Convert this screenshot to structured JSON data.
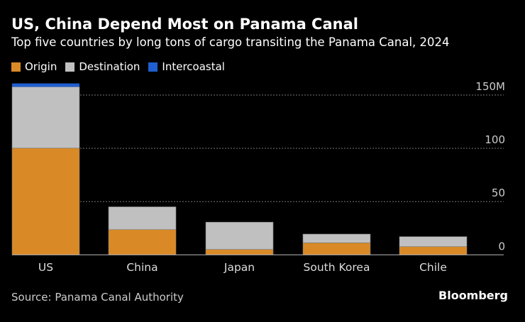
{
  "title": "US, China Depend Most on Panama Canal",
  "subtitle": "Top five countries by long tons of cargo transiting the Panama Canal, 2024",
  "source": "Source: Panama Canal Authority",
  "logo": "Bloomberg",
  "chart_data": {
    "type": "bar",
    "stacked": true,
    "categories": [
      "US",
      "China",
      "Japan",
      "South Korea",
      "Chile"
    ],
    "series": [
      {
        "name": "Origin",
        "color": "#d98a26",
        "values": [
          100.2,
          23.7,
          5.1,
          11.3,
          7.7
        ]
      },
      {
        "name": "Destination",
        "color": "#c0c0c0",
        "values": [
          57.5,
          21.4,
          25.6,
          8.2,
          9.4
        ]
      },
      {
        "name": "Intercoastal",
        "color": "#1f5fcf",
        "values": [
          3.2,
          0,
          0,
          0,
          0
        ]
      }
    ],
    "ylim": [
      0,
      150
    ],
    "yticks": [
      0,
      50,
      100,
      150
    ],
    "ytick_labels": [
      "0",
      "50",
      "100",
      "150M"
    ],
    "grid": true,
    "legend": "top-left",
    "yaxis_position": "right"
  }
}
